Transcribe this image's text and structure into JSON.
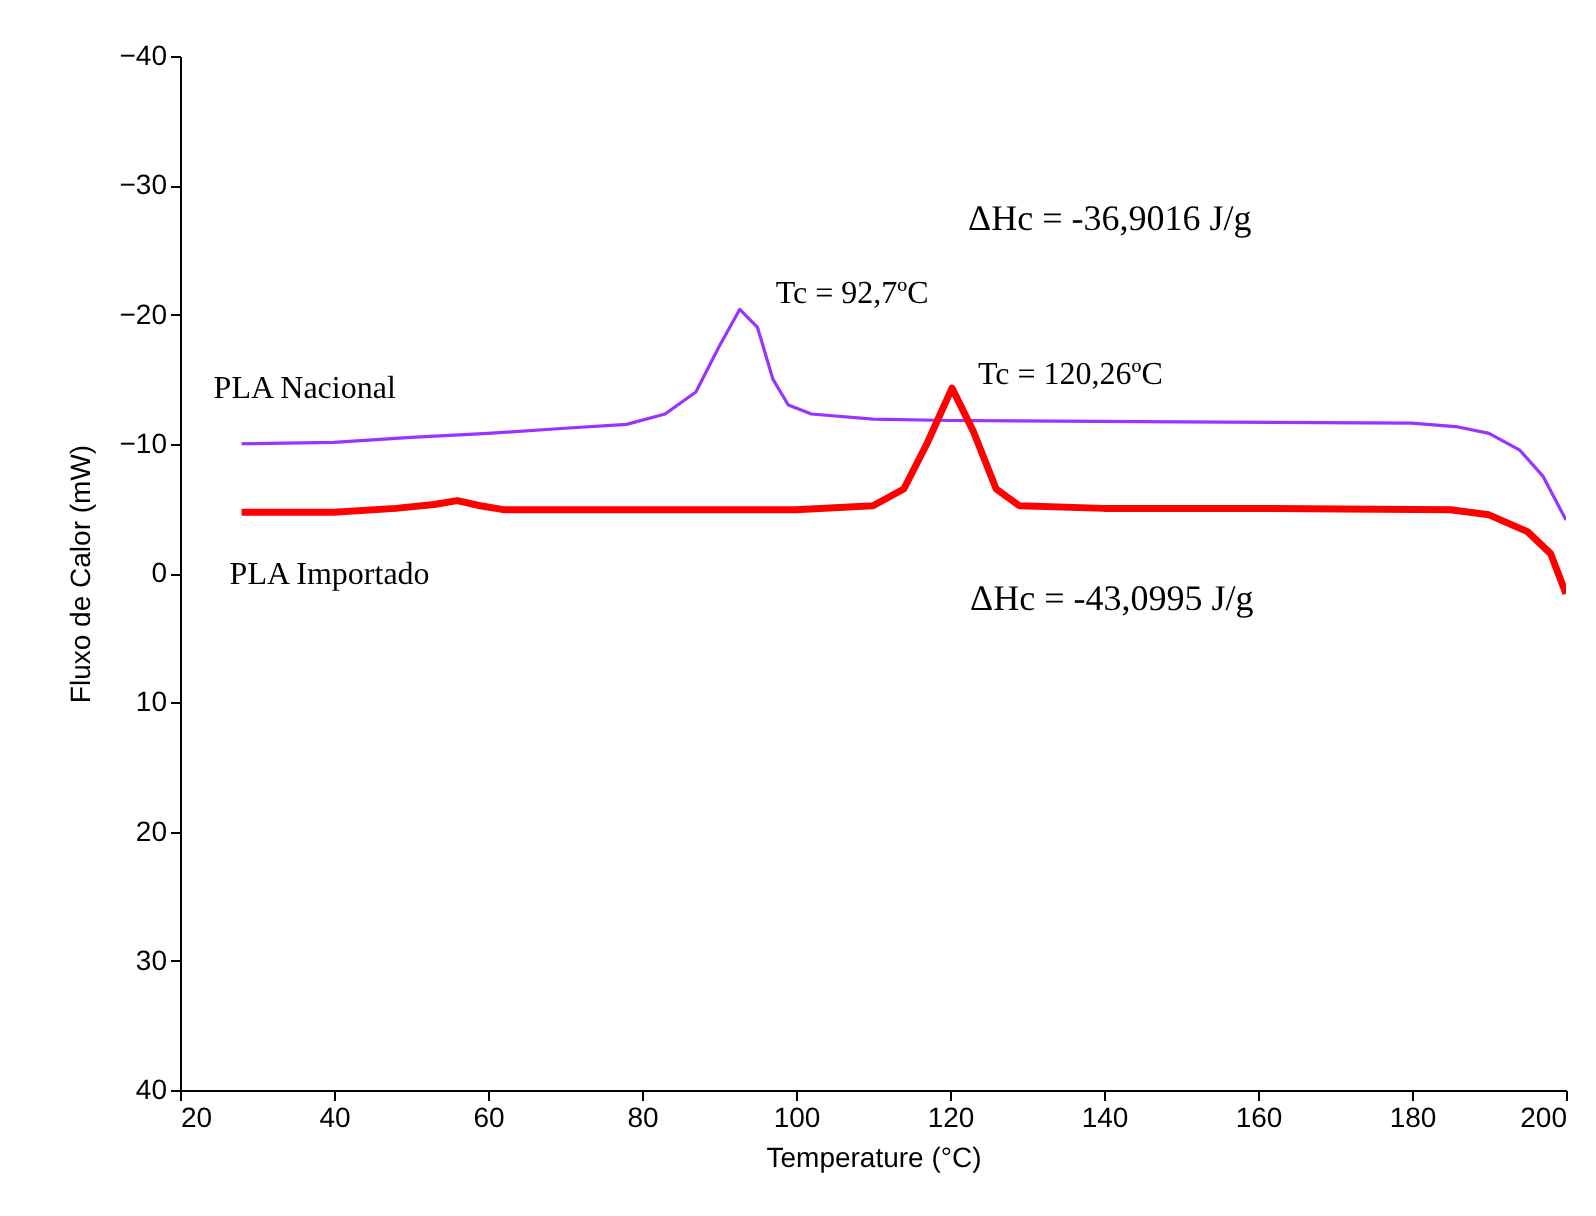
{
  "chart_data": {
    "type": "line",
    "xlabel": "Temperature (°C)",
    "ylabel": "Fluxo de Calor  (mW)",
    "xlim": [
      20,
      200
    ],
    "xticks": [
      20,
      40,
      60,
      80,
      100,
      120,
      140,
      160,
      180,
      200
    ],
    "ylim": [
      40,
      -40
    ],
    "yticks": [
      -40,
      -30,
      -20,
      -10,
      0,
      10,
      20,
      30,
      40
    ],
    "grid": false,
    "legend": false,
    "marker": "none",
    "line_style": "solid",
    "series": [
      {
        "name": "PLA Nacional",
        "color": "#9933ff",
        "x": [
          28,
          40,
          50,
          60,
          70,
          78,
          83,
          87,
          90,
          92.7,
          95,
          97,
          99,
          102,
          110,
          120,
          150,
          180,
          186,
          190,
          194,
          197,
          200
        ],
        "values": [
          -10,
          -10.1,
          -10.5,
          -10.8,
          -11.2,
          -11.5,
          -12.3,
          -14,
          -17.5,
          -20.4,
          -19,
          -15,
          -13,
          -12.3,
          -11.9,
          -11.8,
          -11.7,
          -11.6,
          -11.3,
          -10.8,
          -9.5,
          -7.5,
          -4.1
        ]
      },
      {
        "name": "PLA Importado",
        "color": "#ff0000",
        "x": [
          28,
          40,
          48,
          53,
          56,
          59,
          62,
          80,
          100,
          110,
          114,
          117,
          120.26,
          123,
          126,
          129,
          140,
          160,
          185,
          190,
          195,
          198,
          200
        ],
        "values": [
          -4.7,
          -4.7,
          -5,
          -5.3,
          -5.6,
          -5.2,
          -4.9,
          -4.9,
          -4.9,
          -5.2,
          -6.5,
          -10,
          -14.3,
          -11,
          -6.5,
          -5.2,
          -5,
          -5,
          -4.9,
          -4.5,
          -3.2,
          -1.5,
          1.6
        ]
      }
    ],
    "annotations": [
      {
        "text": "Tc = 92,7ºC",
        "x": 92.7,
        "y": -20.4
      },
      {
        "text": "Tc = 120,26ºC",
        "x": 120.26,
        "y": -14.3
      },
      "ΔHc = -36,9016 J/g",
      "ΔHc = -43,0995 J/g"
    ]
  }
}
